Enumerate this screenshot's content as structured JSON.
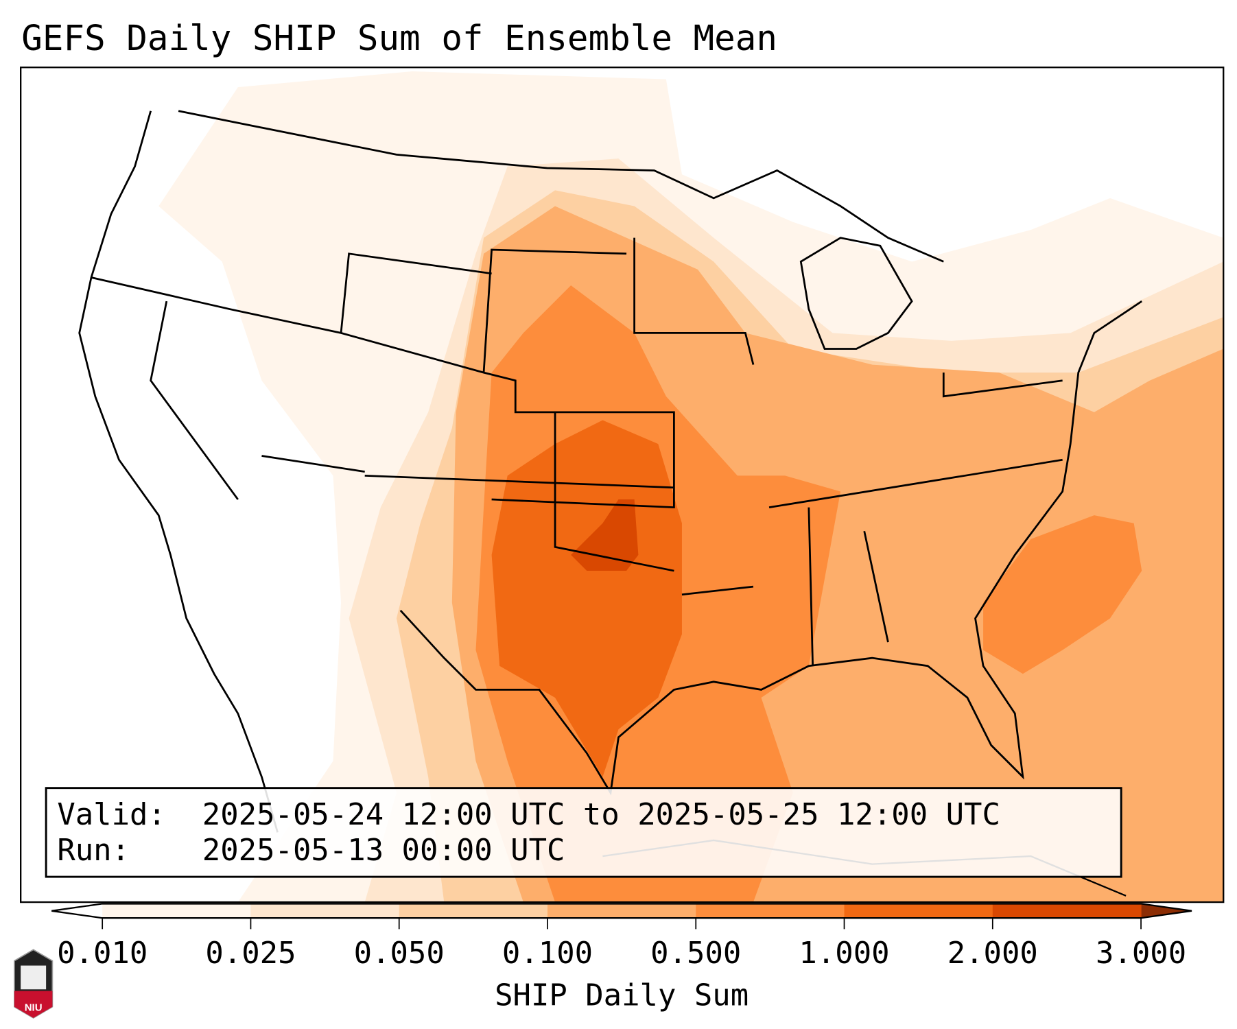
{
  "title": "GEFS Daily SHIP Sum of Ensemble Mean",
  "info_box": {
    "valid_label": "Valid:",
    "valid_value": "2025-05-24 12:00 UTC to 2025-05-25 12:00 UTC",
    "run_label": "Run:",
    "run_value": "2025-05-13 00:00 UTC"
  },
  "colorbar": {
    "label": "SHIP Daily Sum",
    "ticks": [
      "0.010",
      "0.025",
      "0.050",
      "0.100",
      "0.500",
      "1.000",
      "2.000",
      "3.000"
    ],
    "colors": [
      "#fff5eb",
      "#fee6ce",
      "#fdd0a2",
      "#fdae6b",
      "#fd8d3c",
      "#f16913",
      "#d94801"
    ],
    "under_color": "#ffffff",
    "over_color": "#8c2d04"
  },
  "logo": {
    "text": "NIU"
  }
}
